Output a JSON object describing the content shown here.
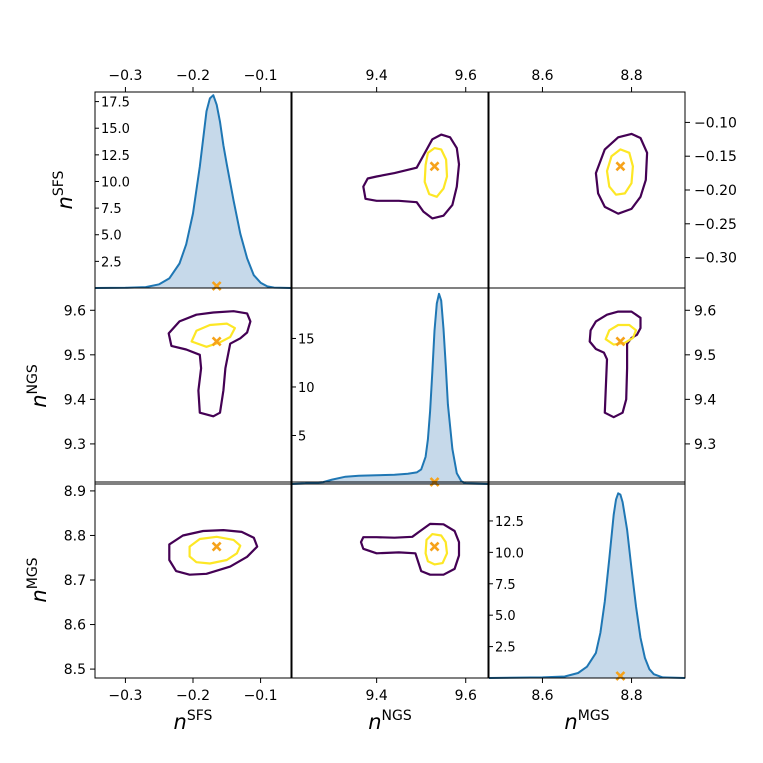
{
  "chart_data": {
    "type": "corner",
    "parameters": [
      {
        "key": "SFS",
        "base": "n",
        "sup": "SFS",
        "range": [
          -0.345,
          -0.055
        ],
        "ticks": [
          {
            "value": -0.3,
            "label": "−0.3"
          },
          {
            "value": -0.2,
            "label": "−0.2"
          },
          {
            "value": -0.1,
            "label": "−0.1"
          }
        ],
        "right_ticks": [
          {
            "value": -0.1,
            "label": "−0.10"
          },
          {
            "value": -0.15,
            "label": "−0.15"
          },
          {
            "value": -0.2,
            "label": "−0.20"
          },
          {
            "value": -0.25,
            "label": "−0.25"
          },
          {
            "value": -0.3,
            "label": "−0.30"
          }
        ],
        "truth": -0.165
      },
      {
        "key": "NGS",
        "base": "n",
        "sup": "NGS",
        "range": [
          9.21,
          9.65
        ],
        "ticks": [
          {
            "value": 9.4,
            "label": "9.4"
          },
          {
            "value": 9.6,
            "label": "9.6"
          }
        ],
        "left_ticks": [
          {
            "value": 9.3,
            "label": "9.3"
          },
          {
            "value": 9.4,
            "label": "9.4"
          },
          {
            "value": 9.5,
            "label": "9.5"
          },
          {
            "value": 9.6,
            "label": "9.6"
          }
        ],
        "truth": 9.53
      },
      {
        "key": "MGS",
        "base": "n",
        "sup": "MGS",
        "range": [
          8.48,
          8.92
        ],
        "ticks": [
          {
            "value": 8.6,
            "label": "8.6"
          },
          {
            "value": 8.8,
            "label": "8.8"
          }
        ],
        "left_ticks": [
          {
            "value": 8.5,
            "label": "8.5"
          },
          {
            "value": 8.6,
            "label": "8.6"
          },
          {
            "value": 8.7,
            "label": "8.7"
          },
          {
            "value": 8.8,
            "label": "8.8"
          },
          {
            "value": 8.9,
            "label": "8.9"
          }
        ],
        "truth": 8.775
      }
    ],
    "diagonals": [
      {
        "param": "SFS",
        "ymax": 18.4,
        "ticks": [
          {
            "value": 2.5,
            "label": "2.5"
          },
          {
            "value": 5.0,
            "label": "5.0"
          },
          {
            "value": 7.5,
            "label": "7.5"
          },
          {
            "value": 10.0,
            "label": "10.0"
          },
          {
            "value": 12.5,
            "label": "12.5"
          },
          {
            "value": 15.0,
            "label": "15.0"
          },
          {
            "value": 17.5,
            "label": "17.5"
          }
        ],
        "x": [
          -0.345,
          -0.3,
          -0.27,
          -0.25,
          -0.235,
          -0.22,
          -0.21,
          -0.2,
          -0.19,
          -0.18,
          -0.175,
          -0.17,
          -0.165,
          -0.16,
          -0.155,
          -0.15,
          -0.14,
          -0.13,
          -0.12,
          -0.11,
          -0.1,
          -0.09,
          -0.08,
          -0.055
        ],
        "y": [
          0,
          0.02,
          0.08,
          0.35,
          0.9,
          2.3,
          4.1,
          7.0,
          11.4,
          16.6,
          17.8,
          18.1,
          17.2,
          15.6,
          13.4,
          11.6,
          8.2,
          5.1,
          2.8,
          1.2,
          0.5,
          0.15,
          0.04,
          0
        ]
      },
      {
        "param": "NGS",
        "ymax": 20.2,
        "ticks": [
          {
            "value": 5,
            "label": "5"
          },
          {
            "value": 10,
            "label": "10"
          },
          {
            "value": 15,
            "label": "15"
          }
        ],
        "x": [
          9.21,
          9.24,
          9.28,
          9.3,
          9.33,
          9.36,
          9.4,
          9.44,
          9.47,
          9.49,
          9.5,
          9.51,
          9.515,
          9.52,
          9.525,
          9.53,
          9.535,
          9.54,
          9.545,
          9.55,
          9.555,
          9.56,
          9.57,
          9.58,
          9.59,
          9.6,
          9.65
        ],
        "y": [
          0,
          0.05,
          0.2,
          0.45,
          0.75,
          0.85,
          0.9,
          0.95,
          1.05,
          1.2,
          1.5,
          2.8,
          4.6,
          7.5,
          11.5,
          15.8,
          18.6,
          19.6,
          18.9,
          16.0,
          12.3,
          8.2,
          3.6,
          1.1,
          0.3,
          0.05,
          0
        ]
      },
      {
        "param": "MGS",
        "ymax": 15.6,
        "ticks": [
          {
            "value": 2.5,
            "label": "2.5"
          },
          {
            "value": 5.0,
            "label": "5.0"
          },
          {
            "value": 7.5,
            "label": "7.5"
          },
          {
            "value": 10.0,
            "label": "10.0"
          },
          {
            "value": 12.5,
            "label": "12.5"
          }
        ],
        "x": [
          8.48,
          8.6,
          8.65,
          8.68,
          8.7,
          8.72,
          8.73,
          8.74,
          8.75,
          8.76,
          8.765,
          8.77,
          8.775,
          8.78,
          8.79,
          8.8,
          8.81,
          8.82,
          8.83,
          8.84,
          8.85,
          8.87,
          8.92
        ],
        "y": [
          0,
          0.05,
          0.12,
          0.4,
          0.9,
          2.0,
          3.6,
          6.1,
          9.5,
          13.0,
          14.2,
          14.7,
          14.6,
          14.0,
          11.8,
          8.7,
          5.7,
          3.2,
          1.6,
          0.7,
          0.3,
          0.05,
          0
        ]
      }
    ],
    "pairs": [
      {
        "cell": [
          0,
          1
        ],
        "x_param": "NGS",
        "y_param": "SFS",
        "outer": [
          [
            9.38,
            -0.183
          ],
          [
            9.4,
            -0.18
          ],
          [
            9.44,
            -0.175
          ],
          [
            9.49,
            -0.167
          ],
          [
            9.51,
            -0.143
          ],
          [
            9.525,
            -0.125
          ],
          [
            9.545,
            -0.118
          ],
          [
            9.565,
            -0.122
          ],
          [
            9.58,
            -0.138
          ],
          [
            9.585,
            -0.162
          ],
          [
            9.58,
            -0.195
          ],
          [
            9.57,
            -0.222
          ],
          [
            9.55,
            -0.238
          ],
          [
            9.525,
            -0.242
          ],
          [
            9.505,
            -0.232
          ],
          [
            9.49,
            -0.218
          ],
          [
            9.45,
            -0.216
          ],
          [
            9.4,
            -0.216
          ],
          [
            9.375,
            -0.213
          ],
          [
            9.37,
            -0.195
          ]
        ],
        "inner": [
          [
            9.51,
            -0.163
          ],
          [
            9.515,
            -0.145
          ],
          [
            9.53,
            -0.138
          ],
          [
            9.545,
            -0.14
          ],
          [
            9.556,
            -0.155
          ],
          [
            9.558,
            -0.18
          ],
          [
            9.55,
            -0.198
          ],
          [
            9.535,
            -0.21
          ],
          [
            9.518,
            -0.206
          ],
          [
            9.508,
            -0.188
          ]
        ]
      },
      {
        "cell": [
          0,
          2
        ],
        "x_param": "MGS",
        "y_param": "SFS",
        "outer": [
          [
            8.72,
            -0.175
          ],
          [
            8.74,
            -0.14
          ],
          [
            8.77,
            -0.122
          ],
          [
            8.8,
            -0.117
          ],
          [
            8.82,
            -0.123
          ],
          [
            8.835,
            -0.145
          ],
          [
            8.832,
            -0.185
          ],
          [
            8.82,
            -0.21
          ],
          [
            8.8,
            -0.228
          ],
          [
            8.77,
            -0.235
          ],
          [
            8.74,
            -0.225
          ],
          [
            8.725,
            -0.205
          ]
        ],
        "inner": [
          [
            8.745,
            -0.172
          ],
          [
            8.755,
            -0.15
          ],
          [
            8.775,
            -0.14
          ],
          [
            8.795,
            -0.145
          ],
          [
            8.803,
            -0.165
          ],
          [
            8.8,
            -0.19
          ],
          [
            8.785,
            -0.205
          ],
          [
            8.765,
            -0.207
          ],
          [
            8.75,
            -0.195
          ]
        ]
      },
      {
        "cell": [
          1,
          0
        ],
        "x_param": "SFS",
        "y_param": "NGS",
        "outer": [
          [
            -0.22,
            9.575
          ],
          [
            -0.195,
            9.59
          ],
          [
            -0.17,
            9.595
          ],
          [
            -0.14,
            9.598
          ],
          [
            -0.12,
            9.593
          ],
          [
            -0.115,
            9.575
          ],
          [
            -0.12,
            9.55
          ],
          [
            -0.13,
            9.537
          ],
          [
            -0.145,
            9.525
          ],
          [
            -0.152,
            9.47
          ],
          [
            -0.155,
            9.42
          ],
          [
            -0.16,
            9.37
          ],
          [
            -0.17,
            9.362
          ],
          [
            -0.19,
            9.37
          ],
          [
            -0.192,
            9.42
          ],
          [
            -0.188,
            9.47
          ],
          [
            -0.19,
            9.5
          ],
          [
            -0.21,
            9.512
          ],
          [
            -0.232,
            9.52
          ],
          [
            -0.236,
            9.548
          ]
        ],
        "inner": [
          [
            -0.202,
            9.53
          ],
          [
            -0.195,
            9.554
          ],
          [
            -0.175,
            9.567
          ],
          [
            -0.15,
            9.57
          ],
          [
            -0.138,
            9.56
          ],
          [
            -0.145,
            9.54
          ],
          [
            -0.16,
            9.528
          ],
          [
            -0.18,
            9.518
          ]
        ]
      },
      {
        "cell": [
          1,
          2
        ],
        "x_param": "MGS",
        "y_param": "NGS",
        "outer": [
          [
            8.72,
            9.575
          ],
          [
            8.745,
            9.59
          ],
          [
            8.77,
            9.597
          ],
          [
            8.8,
            9.597
          ],
          [
            8.82,
            9.583
          ],
          [
            8.82,
            9.56
          ],
          [
            8.812,
            9.545
          ],
          [
            8.8,
            9.538
          ],
          [
            8.79,
            9.525
          ],
          [
            8.79,
            9.47
          ],
          [
            8.788,
            9.4
          ],
          [
            8.78,
            9.37
          ],
          [
            8.76,
            9.36
          ],
          [
            8.74,
            9.37
          ],
          [
            8.742,
            9.42
          ],
          [
            8.745,
            9.49
          ],
          [
            8.738,
            9.505
          ],
          [
            8.72,
            9.513
          ],
          [
            8.706,
            9.53
          ],
          [
            8.708,
            9.555
          ]
        ],
        "inner": [
          [
            8.742,
            9.535
          ],
          [
            8.75,
            9.555
          ],
          [
            8.77,
            9.567
          ],
          [
            8.795,
            9.567
          ],
          [
            8.81,
            9.555
          ],
          [
            8.803,
            9.538
          ],
          [
            8.785,
            9.527
          ],
          [
            8.76,
            9.523
          ]
        ]
      },
      {
        "cell": [
          2,
          0
        ],
        "x_param": "SFS",
        "y_param": "MGS",
        "outer": [
          [
            -0.235,
            8.745
          ],
          [
            -0.225,
            8.72
          ],
          [
            -0.205,
            8.712
          ],
          [
            -0.18,
            8.714
          ],
          [
            -0.145,
            8.73
          ],
          [
            -0.12,
            8.752
          ],
          [
            -0.105,
            8.775
          ],
          [
            -0.11,
            8.795
          ],
          [
            -0.128,
            8.808
          ],
          [
            -0.155,
            8.812
          ],
          [
            -0.185,
            8.81
          ],
          [
            -0.215,
            8.8
          ],
          [
            -0.235,
            8.78
          ]
        ],
        "inner": [
          [
            -0.205,
            8.753
          ],
          [
            -0.195,
            8.74
          ],
          [
            -0.175,
            8.737
          ],
          [
            -0.15,
            8.745
          ],
          [
            -0.135,
            8.76
          ],
          [
            -0.13,
            8.777
          ],
          [
            -0.14,
            8.79
          ],
          [
            -0.165,
            8.797
          ],
          [
            -0.19,
            8.792
          ],
          [
            -0.205,
            8.775
          ]
        ]
      },
      {
        "cell": [
          2,
          1
        ],
        "x_param": "NGS",
        "y_param": "MGS",
        "outer": [
          [
            9.365,
            8.785
          ],
          [
            9.37,
            8.77
          ],
          [
            9.4,
            8.76
          ],
          [
            9.45,
            8.762
          ],
          [
            9.487,
            8.76
          ],
          [
            9.495,
            8.735
          ],
          [
            9.5,
            8.72
          ],
          [
            9.52,
            8.712
          ],
          [
            9.55,
            8.712
          ],
          [
            9.575,
            8.725
          ],
          [
            9.585,
            8.755
          ],
          [
            9.585,
            8.785
          ],
          [
            9.575,
            8.81
          ],
          [
            9.55,
            8.825
          ],
          [
            9.52,
            8.826
          ],
          [
            9.495,
            8.808
          ],
          [
            9.48,
            8.797
          ],
          [
            9.44,
            8.795
          ],
          [
            9.4,
            8.796
          ],
          [
            9.37,
            8.796
          ]
        ],
        "inner": [
          [
            9.51,
            8.76
          ],
          [
            9.515,
            8.742
          ],
          [
            9.53,
            8.735
          ],
          [
            9.548,
            8.738
          ],
          [
            9.558,
            8.76
          ],
          [
            9.555,
            8.785
          ],
          [
            9.545,
            8.8
          ],
          [
            9.525,
            8.803
          ],
          [
            9.512,
            8.79
          ]
        ]
      }
    ],
    "colors": {
      "hist_line": "#1f77b4",
      "hist_fill": "#c6d9ea",
      "outer_contour": "#440154",
      "inner_contour": "#fde725",
      "truth_marker": "#f6a21a"
    }
  }
}
